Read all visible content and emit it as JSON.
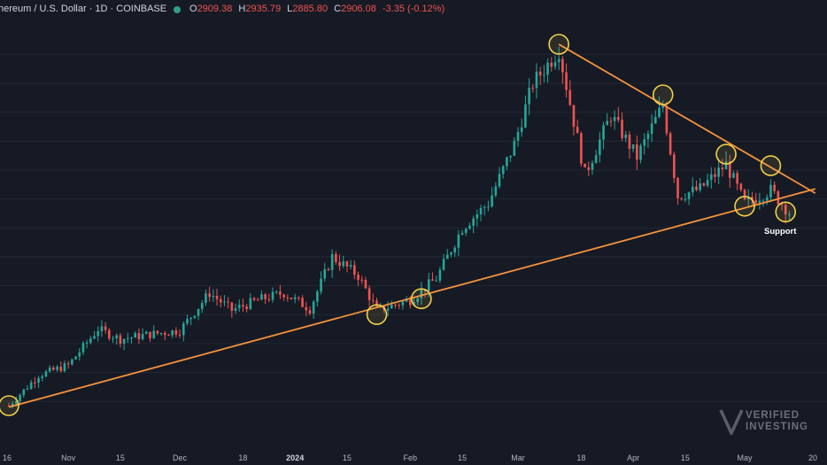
{
  "header": {
    "symbol": "hereum / U.S. Dollar · 1D · COINBASE",
    "o_label": "O",
    "o_value": "2909.38",
    "h_label": "H",
    "h_value": "2935.79",
    "l_label": "L",
    "l_value": "2885.80",
    "c_label": "C",
    "c_value": "2906.08",
    "change": "-3.35 (-0.12%)"
  },
  "annotation": "Support",
  "watermark": {
    "line1": "VERIFIED",
    "line2": "INVESTING"
  },
  "colors": {
    "background": "#161a25",
    "up": "#26a69a",
    "down": "#ef5350",
    "trendline": "#f5923e",
    "circle": "#f2d04b",
    "grid": "#232733"
  },
  "chart_data": {
    "type": "candlestick",
    "x_tick_labels": [
      "16",
      "Nov",
      "15",
      "Dec",
      "18",
      "2024",
      "15",
      "Feb",
      "15",
      "Mar",
      "18",
      "Apr",
      "15",
      "May",
      "20"
    ],
    "x_range": [
      "2023-10-16",
      "2024-05-20"
    ],
    "y_range": [
      1500,
      4150
    ],
    "y_gridlines": [
      1600,
      1800,
      2000,
      2200,
      2400,
      2600,
      2800,
      3000,
      3200,
      3400,
      3600,
      3800,
      4000
    ],
    "grid": true,
    "annotations": [
      "Support"
    ],
    "touch_points": [
      {
        "date": "2023-10-16",
        "price": 1570
      },
      {
        "date": "2024-01-23",
        "price": 2200
      },
      {
        "date": "2024-02-04",
        "price": 2310
      },
      {
        "date": "2024-03-12",
        "price": 4070
      },
      {
        "date": "2024-04-09",
        "price": 3720
      },
      {
        "date": "2024-04-26",
        "price": 3310
      },
      {
        "date": "2024-05-01",
        "price": 2950
      },
      {
        "date": "2024-05-08",
        "price": 3230
      },
      {
        "date": "2024-05-12",
        "price": 2910
      }
    ],
    "trendlines": [
      {
        "name": "support",
        "points": [
          {
            "date": "2023-10-16",
            "price": 1560
          },
          {
            "date": "2024-05-20",
            "price": 3070
          }
        ]
      },
      {
        "name": "resistance",
        "points": [
          {
            "date": "2024-03-12",
            "price": 4070
          },
          {
            "date": "2024-05-20",
            "price": 3040
          }
        ]
      }
    ],
    "series": [
      {
        "date": "2023-10-16",
        "close": 1570
      },
      {
        "date": "2023-10-24",
        "close": 1780
      },
      {
        "date": "2023-11-01",
        "close": 1850
      },
      {
        "date": "2023-11-09",
        "close": 2100
      },
      {
        "date": "2023-11-15",
        "close": 2030
      },
      {
        "date": "2023-11-22",
        "close": 2060
      },
      {
        "date": "2023-12-01",
        "close": 2090
      },
      {
        "date": "2023-12-09",
        "close": 2350
      },
      {
        "date": "2023-12-15",
        "close": 2230
      },
      {
        "date": "2023-12-22",
        "close": 2300
      },
      {
        "date": "2023-12-29",
        "close": 2350
      },
      {
        "date": "2024-01-05",
        "close": 2240
      },
      {
        "date": "2024-01-11",
        "close": 2600
      },
      {
        "date": "2024-01-18",
        "close": 2470
      },
      {
        "date": "2024-01-23",
        "close": 2230
      },
      {
        "date": "2024-02-01",
        "close": 2300
      },
      {
        "date": "2024-02-08",
        "close": 2450
      },
      {
        "date": "2024-02-15",
        "close": 2800
      },
      {
        "date": "2024-02-22",
        "close": 2970
      },
      {
        "date": "2024-02-29",
        "close": 3380
      },
      {
        "date": "2024-03-05",
        "close": 3800
      },
      {
        "date": "2024-03-12",
        "close": 4030
      },
      {
        "date": "2024-03-19",
        "close": 3170
      },
      {
        "date": "2024-03-26",
        "close": 3580
      },
      {
        "date": "2024-04-02",
        "close": 3290
      },
      {
        "date": "2024-04-09",
        "close": 3650
      },
      {
        "date": "2024-04-13",
        "close": 3020
      },
      {
        "date": "2024-04-19",
        "close": 3070
      },
      {
        "date": "2024-04-26",
        "close": 3240
      },
      {
        "date": "2024-05-01",
        "close": 2970
      },
      {
        "date": "2024-05-08",
        "close": 3060
      },
      {
        "date": "2024-05-13",
        "close": 2906
      }
    ]
  }
}
